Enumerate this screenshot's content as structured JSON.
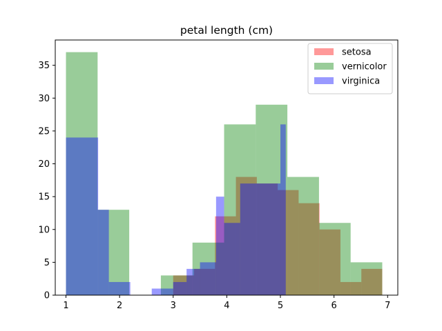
{
  "chart_data": {
    "type": "histogram",
    "title": "petal length (cm)",
    "xlabel": "",
    "ylabel": "",
    "xlim": [
      0.8,
      7.19
    ],
    "ylim": [
      0,
      38.85
    ],
    "xticks": [
      1,
      2,
      3,
      4,
      5,
      6,
      7
    ],
    "yticks": [
      0,
      5,
      10,
      15,
      20,
      25,
      30,
      35
    ],
    "grid": false,
    "legend_position": "top-right",
    "alpha": 0.4,
    "series": [
      {
        "name": "setosa",
        "color": "#ff0000",
        "bin_edges": [
          3.0,
          3.39,
          3.78,
          4.17,
          4.56,
          4.95,
          5.34,
          5.73,
          6.12,
          6.51,
          6.9
        ],
        "counts": [
          3,
          4,
          12,
          18,
          17,
          16,
          14,
          10,
          2,
          4
        ]
      },
      {
        "name": "vernicolor",
        "color": "#008000",
        "bin_edges": [
          1.0,
          1.59,
          2.18,
          2.77,
          3.36,
          3.95,
          4.54,
          5.13,
          5.72,
          6.31,
          6.9
        ],
        "counts": [
          37,
          13,
          0,
          3,
          8,
          26,
          29,
          18,
          11,
          5
        ]
      },
      {
        "name": "virginica",
        "color": "#0000ff",
        "bin_edges": [
          1.0,
          1.6,
          1.8,
          2.2,
          2.6,
          2.8,
          3.0,
          3.25,
          3.5,
          3.8,
          3.95,
          4.25,
          4.6,
          5.0,
          5.1
        ],
        "counts": [
          24,
          13,
          2,
          0,
          1,
          1,
          2,
          4,
          5,
          15,
          11,
          17,
          17,
          26
        ]
      }
    ]
  }
}
